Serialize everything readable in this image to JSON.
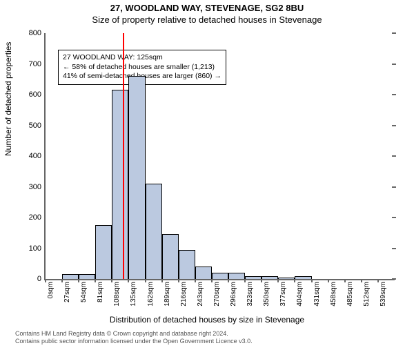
{
  "titles": {
    "line1": "27, WOODLAND WAY, STEVENAGE, SG2 8BU",
    "line2": "Size of property relative to detached houses in Stevenage"
  },
  "ylabel": "Number of detached properties",
  "xlabel": "Distribution of detached houses by size in Stevenage",
  "chart": {
    "type": "histogram",
    "ylim": [
      0,
      800
    ],
    "ytick_step": 100,
    "x_bin_width": 27,
    "x_unit": "sqm",
    "categories": [
      0,
      27,
      54,
      81,
      108,
      135,
      162,
      189,
      216,
      243,
      270,
      296,
      323,
      350,
      377,
      404,
      431,
      458,
      485,
      512,
      539
    ],
    "values": [
      0,
      15,
      15,
      175,
      615,
      660,
      310,
      145,
      95,
      40,
      20,
      20,
      10,
      8,
      5,
      10,
      0,
      0,
      0,
      0,
      0
    ],
    "bar_fill": "#bbc9e0",
    "bar_stroke": "#000000",
    "background_color": "#ffffff",
    "axis_color": "#666666",
    "marker": {
      "value_sqm": 125,
      "color": "#ff0000"
    }
  },
  "annotation": {
    "line1": "27 WOODLAND WAY: 125sqm",
    "line2": "← 58% of detached houses are smaller (1,213)",
    "line3": "41% of semi-detached houses are larger (860) →"
  },
  "credit": {
    "line1": "Contains HM Land Registry data © Crown copyright and database right 2024.",
    "line2": "Contains public sector information licensed under the Open Government Licence v3.0."
  }
}
